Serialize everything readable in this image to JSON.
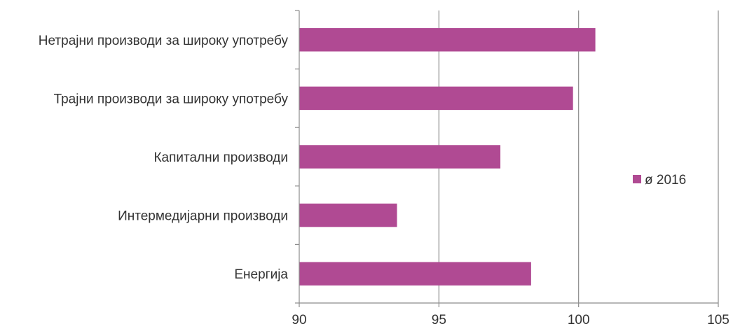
{
  "chart_data": {
    "type": "bar",
    "orientation": "horizontal",
    "categories": [
      "Нетрајни производи за широку употребу",
      "Трајни производи за широку употребу",
      "Капитални производи",
      "Интермедијарни производи",
      "Енергија"
    ],
    "series": [
      {
        "name": "ø 2016",
        "color": "#b04a93",
        "values": [
          100.6,
          99.8,
          97.2,
          93.5,
          98.3
        ]
      }
    ],
    "xlim": [
      90,
      105
    ],
    "x_ticks": [
      "90",
      "95",
      "100",
      "105"
    ],
    "grid": "vertical",
    "legend": {
      "placement": "right",
      "entries": [
        "ø 2016"
      ]
    },
    "title": "",
    "xlabel": "",
    "ylabel": ""
  }
}
